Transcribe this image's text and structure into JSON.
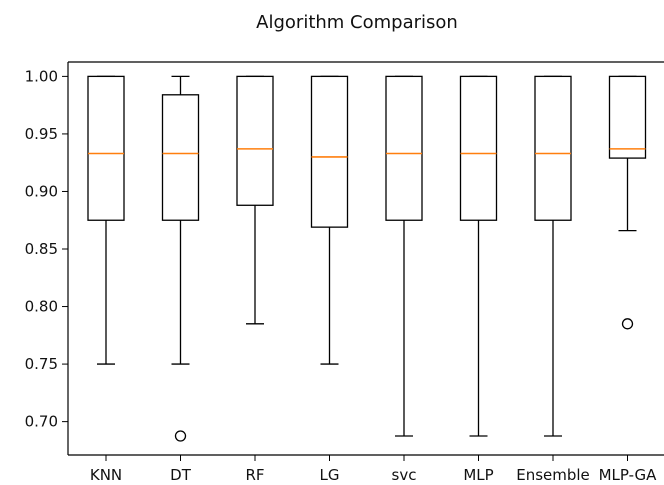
{
  "chart_data": {
    "type": "box",
    "title": "Algorithm Comparison",
    "xlabel": "",
    "ylabel": "",
    "categories": [
      "KNN",
      "DT",
      "RF",
      "LG",
      "svc",
      "MLP",
      "Ensemble",
      "MLP-GA"
    ],
    "ylim": [
      0.671,
      1.0125
    ],
    "yticks": [
      0.7,
      0.75,
      0.8,
      0.85,
      0.9,
      0.95,
      1.0
    ],
    "ytick_labels": [
      "0.70",
      "0.75",
      "0.80",
      "0.85",
      "0.90",
      "0.95",
      "1.00"
    ],
    "grid": false,
    "boxes": [
      {
        "category": "KNN",
        "whisker_low": 0.75,
        "q1": 0.875,
        "median": 0.933,
        "q3": 1.0,
        "whisker_high": 1.0,
        "outliers": []
      },
      {
        "category": "DT",
        "whisker_low": 0.75,
        "q1": 0.875,
        "median": 0.933,
        "q3": 0.984,
        "whisker_high": 1.0,
        "outliers": [
          0.6875
        ]
      },
      {
        "category": "RF",
        "whisker_low": 0.785,
        "q1": 0.888,
        "median": 0.937,
        "q3": 1.0,
        "whisker_high": 1.0,
        "outliers": []
      },
      {
        "category": "LG",
        "whisker_low": 0.75,
        "q1": 0.869,
        "median": 0.93,
        "q3": 1.0,
        "whisker_high": 1.0,
        "outliers": []
      },
      {
        "category": "svc",
        "whisker_low": 0.6875,
        "q1": 0.875,
        "median": 0.933,
        "q3": 1.0,
        "whisker_high": 1.0,
        "outliers": []
      },
      {
        "category": "MLP",
        "whisker_low": 0.6875,
        "q1": 0.875,
        "median": 0.933,
        "q3": 1.0,
        "whisker_high": 1.0,
        "outliers": []
      },
      {
        "category": "Ensemble",
        "whisker_low": 0.6875,
        "q1": 0.875,
        "median": 0.933,
        "q3": 1.0,
        "whisker_high": 1.0,
        "outliers": []
      },
      {
        "category": "MLP-GA",
        "whisker_low": 0.866,
        "q1": 0.929,
        "median": 0.937,
        "q3": 1.0,
        "whisker_high": 1.0,
        "outliers": [
          0.785
        ]
      }
    ],
    "colors": {
      "box": "#000000",
      "median": "#ff7f0e",
      "outlier": "#000000"
    }
  }
}
